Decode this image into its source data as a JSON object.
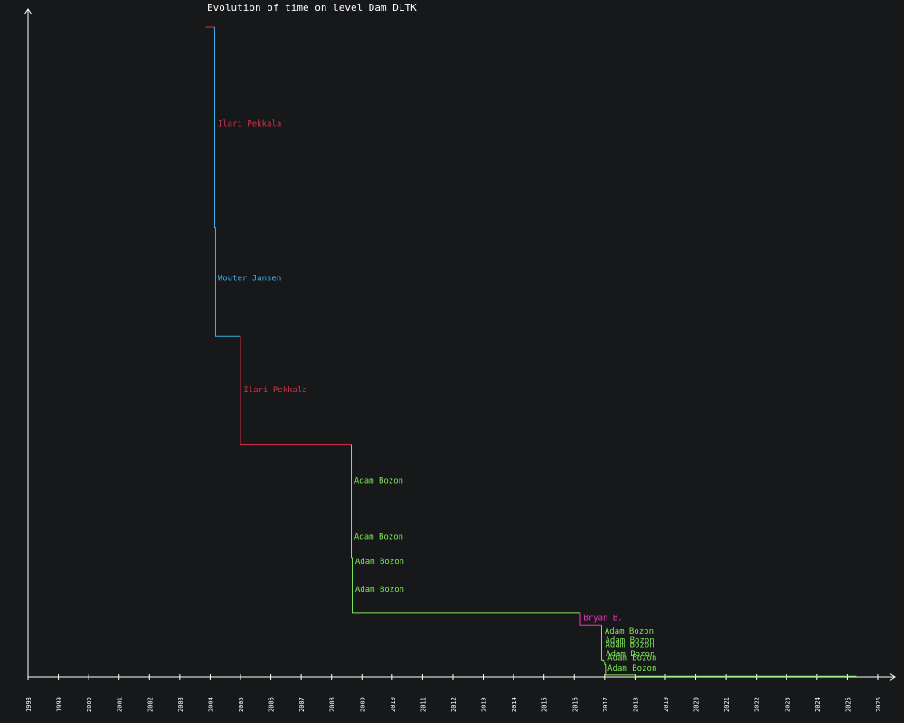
{
  "chart_data": {
    "type": "line",
    "title": "Evolution of time on level Dam DLTK",
    "xlabel": "",
    "ylabel": "",
    "x_ticks": [
      "1998",
      "1999",
      "2000",
      "2001",
      "2002",
      "2003",
      "2004",
      "2005",
      "2006",
      "2007",
      "2008",
      "2009",
      "2010",
      "2011",
      "2012",
      "2013",
      "2014",
      "2015",
      "2016",
      "2017",
      "2018",
      "2019",
      "2020",
      "2021",
      "2022",
      "2023",
      "2024",
      "2025",
      "2026"
    ],
    "xlim": [
      1998,
      2026
    ],
    "grid": false,
    "colors": {
      "background": "#17181a",
      "axis": "#ffffff",
      "ilari": "#d9344a",
      "wouter": "#38b6f0",
      "adam": "#7ee85c",
      "bryan": "#ff2fc0"
    },
    "steps": [
      {
        "x_start": 2003.85,
        "x_end": 2004.15,
        "y": 100.0,
        "color_key": "ilari"
      },
      {
        "x_start": 2004.15,
        "x_end": 2004.18,
        "y": 69.2,
        "color_key": "wouter"
      },
      {
        "x_start": 2004.18,
        "x_end": 2005.0,
        "y": 52.4,
        "color_key": "wouter"
      },
      {
        "x_start": 2005.0,
        "x_end": 2008.65,
        "y": 35.8,
        "color_key": "ilari"
      },
      {
        "x_start": 2008.65,
        "x_end": 2008.68,
        "y": 18.4,
        "color_key": "adam"
      },
      {
        "x_start": 2008.68,
        "x_end": 2016.2,
        "y": 9.9,
        "color_key": "adam"
      },
      {
        "x_start": 2016.2,
        "x_end": 2016.9,
        "y": 7.9,
        "color_key": "bryan"
      },
      {
        "x_start": 2016.9,
        "x_end": 2016.97,
        "y": 2.6,
        "color_key": "adam"
      },
      {
        "x_start": 2016.97,
        "x_end": 2017.0,
        "y": 2.3,
        "color_key": "adam"
      },
      {
        "x_start": 2017.0,
        "x_end": 2017.03,
        "y": 1.9,
        "color_key": "adam"
      },
      {
        "x_start": 2017.03,
        "x_end": 2018.0,
        "y": 0.3,
        "color_key": "adam"
      },
      {
        "x_start": 2018.0,
        "x_end": 2025.3,
        "y": 0.1,
        "color_key": "adam"
      }
    ],
    "labels": [
      {
        "text": "Ilari Pekkala",
        "x": 2004.25,
        "y": 84.8,
        "color_key": "ilari"
      },
      {
        "text": "Wouter Jansen",
        "x": 2004.25,
        "y": 61.0,
        "color_key": "wouter"
      },
      {
        "text": "Ilari Pekkala",
        "x": 2005.1,
        "y": 43.8,
        "color_key": "ilari"
      },
      {
        "text": "Adam Bozon",
        "x": 2008.75,
        "y": 29.8,
        "color_key": "adam"
      },
      {
        "text": "Adam Bozon",
        "x": 2008.75,
        "y": 21.2,
        "color_key": "adam"
      },
      {
        "text": "Adam Bozon",
        "x": 2008.78,
        "y": 17.4,
        "color_key": "adam"
      },
      {
        "text": "Adam Bozon",
        "x": 2008.78,
        "y": 13.1,
        "color_key": "adam"
      },
      {
        "text": "Bryan B.",
        "x": 2016.3,
        "y": 8.7,
        "color_key": "bryan"
      },
      {
        "text": "Adam Bozon",
        "x": 2017.0,
        "y": 6.7,
        "color_key": "adam"
      },
      {
        "text": "Adam Bozon",
        "x": 2017.02,
        "y": 5.3,
        "color_key": "adam"
      },
      {
        "text": "Adam Bozon",
        "x": 2017.02,
        "y": 4.5,
        "color_key": "adam"
      },
      {
        "text": "Adam Bozon",
        "x": 2017.04,
        "y": 3.2,
        "color_key": "adam"
      },
      {
        "text": "Adam Bozon",
        "x": 2017.1,
        "y": 2.6,
        "color_key": "adam"
      },
      {
        "text": "Adam Bozon",
        "x": 2017.1,
        "y": 1.0,
        "color_key": "adam"
      }
    ]
  }
}
